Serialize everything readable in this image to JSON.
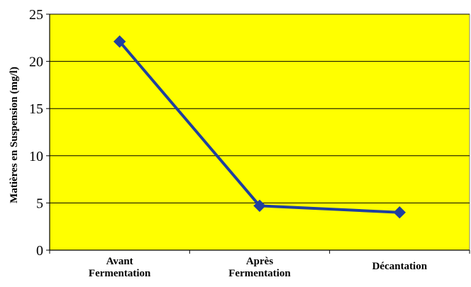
{
  "chart_data": {
    "type": "line",
    "title": "",
    "xlabel": "",
    "ylabel": "Matières en Suspension (mg/l)",
    "categories": [
      "Avant Fermentation",
      "Après Fermentation",
      "Décantation"
    ],
    "category_lines": [
      [
        "Avant",
        "Fermentation"
      ],
      [
        "Après",
        "Fermentation"
      ],
      [
        "Décantation"
      ]
    ],
    "series": [
      {
        "values": [
          22.1,
          4.7,
          4.0
        ]
      }
    ],
    "ylim": [
      0,
      25
    ],
    "yticks": [
      0,
      5,
      10,
      15,
      20,
      25
    ],
    "grid": true,
    "legend": "none",
    "colors": {
      "plot_background": "#FFFF00",
      "line": "#1F3F9F",
      "marker": "#1F3F9F",
      "gridline": "#000000"
    }
  }
}
